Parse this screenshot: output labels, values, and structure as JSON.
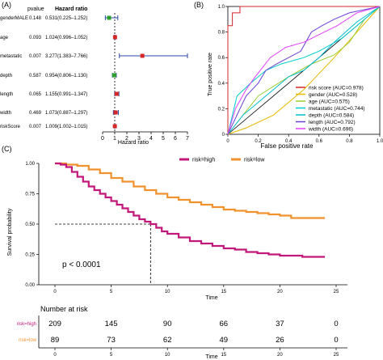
{
  "panels": {
    "a_label": "(A)",
    "b_label": "(B)",
    "c_label": "(C)"
  },
  "forest": {
    "col_pvalue": "pvalue",
    "col_hr": "Hazard ratio",
    "xlabel": "Hazard ratio",
    "ticks": [
      0,
      1,
      2,
      3,
      4,
      5,
      6,
      7
    ],
    "xlim": [
      0,
      7
    ],
    "ref_line": 1,
    "rows": [
      {
        "name": "genderMALE",
        "pvalue": "0.148",
        "hr_text": "0.531(0.225–1.252)",
        "hr": 0.531,
        "lo": 0.225,
        "hi": 1.252,
        "color": "#2ca02c"
      },
      {
        "name": "age",
        "pvalue": "0.093",
        "hr_text": "1.024(0.996–1.052)",
        "hr": 1.024,
        "lo": 0.996,
        "hi": 1.052,
        "color": "#d62728"
      },
      {
        "name": "metastatic",
        "pvalue": "0.007",
        "hr_text": "3.277(1.383–7.766)",
        "hr": 3.277,
        "lo": 1.383,
        "hi": 7.766,
        "color": "#d62728"
      },
      {
        "name": "depth",
        "pvalue": "0.587",
        "pvalue_raw": "0.587",
        "hr_text": "0.954(0.806–1.130)",
        "hr": 0.954,
        "lo": 0.806,
        "hi": 1.13,
        "color": "#2ca02c"
      },
      {
        "name": "length",
        "pvalue": "0.065",
        "hr_text": "1.155(0.991–1.347)",
        "hr": 1.155,
        "lo": 0.991,
        "hi": 1.347,
        "color": "#d62728"
      },
      {
        "name": "width",
        "pvalue": "0.469",
        "hr_text": "1.073(0.887–1.297)",
        "hr": 1.073,
        "lo": 0.887,
        "hi": 1.297,
        "color": "#d62728"
      },
      {
        "name": "riskScore",
        "pvalue": "0.007",
        "hr_text": "1.009(1.002–1.015)",
        "hr": 1.009,
        "lo": 1.002,
        "hi": 1.015,
        "color": "#d62728"
      }
    ]
  },
  "roc": {
    "xlabel": "False positive rate",
    "ylabel": "True positive rate",
    "ticks": [
      0,
      0.2,
      0.4,
      0.6,
      0.8,
      1
    ],
    "tick_labels": [
      "0",
      "0.2",
      "0.4",
      "0.6",
      "0.8",
      "1.0"
    ],
    "series": [
      {
        "name": "risk score (AUC=0.978)",
        "color": "#d62728",
        "points": [
          [
            0,
            0
          ],
          [
            0,
            0.85
          ],
          [
            0.03,
            0.85
          ],
          [
            0.03,
            0.95
          ],
          [
            0.08,
            0.95
          ],
          [
            0.08,
            1
          ],
          [
            1,
            1
          ]
        ]
      },
      {
        "name": "gender (AUC=0.528)",
        "color": "#e6b800",
        "points": [
          [
            0,
            0
          ],
          [
            0.12,
            0.05
          ],
          [
            0.3,
            0.15
          ],
          [
            0.5,
            0.35
          ],
          [
            0.7,
            0.6
          ],
          [
            0.85,
            0.8
          ],
          [
            1,
            1
          ]
        ]
      },
      {
        "name": "age (AUC=0.575)",
        "color": "#9acd32",
        "points": [
          [
            0,
            0
          ],
          [
            0.08,
            0.12
          ],
          [
            0.2,
            0.3
          ],
          [
            0.4,
            0.45
          ],
          [
            0.55,
            0.55
          ],
          [
            0.7,
            0.62
          ],
          [
            0.8,
            0.72
          ],
          [
            0.9,
            0.9
          ],
          [
            1,
            1
          ]
        ]
      },
      {
        "name": "metastatic (AUC=0.744)",
        "color": "#00cccc",
        "points": [
          [
            0,
            0
          ],
          [
            0.06,
            0.3
          ],
          [
            0.15,
            0.4
          ],
          [
            0.25,
            0.5
          ],
          [
            0.35,
            0.55
          ],
          [
            0.5,
            0.6
          ],
          [
            0.6,
            0.65
          ],
          [
            0.75,
            0.75
          ],
          [
            0.85,
            0.85
          ],
          [
            1,
            1
          ]
        ]
      },
      {
        "name": "depth (AUC=0.584)",
        "color": "#00bcd4",
        "points": [
          [
            0,
            0
          ],
          [
            0.1,
            0.15
          ],
          [
            0.2,
            0.25
          ],
          [
            0.3,
            0.35
          ],
          [
            0.4,
            0.45
          ],
          [
            0.5,
            0.5
          ],
          [
            0.6,
            0.6
          ],
          [
            0.7,
            0.72
          ],
          [
            0.85,
            0.88
          ],
          [
            1,
            1
          ]
        ]
      },
      {
        "name": "length (AUC=0.792)",
        "color": "#6a3fd6",
        "points": [
          [
            0,
            0
          ],
          [
            0.04,
            0.1
          ],
          [
            0.08,
            0.2
          ],
          [
            0.12,
            0.3
          ],
          [
            0.2,
            0.4
          ],
          [
            0.25,
            0.5
          ],
          [
            0.32,
            0.55
          ],
          [
            0.4,
            0.6
          ],
          [
            0.48,
            0.65
          ],
          [
            0.55,
            0.8
          ],
          [
            0.62,
            0.85
          ],
          [
            0.7,
            0.9
          ],
          [
            0.8,
            0.95
          ],
          [
            1,
            1
          ]
        ]
      },
      {
        "name": "width (AUC=0.696)",
        "color": "#e040fb",
        "points": [
          [
            0,
            0
          ],
          [
            0.05,
            0.2
          ],
          [
            0.12,
            0.35
          ],
          [
            0.18,
            0.45
          ],
          [
            0.28,
            0.6
          ],
          [
            0.38,
            0.68
          ],
          [
            0.5,
            0.72
          ],
          [
            0.6,
            0.78
          ],
          [
            0.72,
            0.85
          ],
          [
            0.85,
            0.95
          ],
          [
            1,
            1
          ]
        ]
      }
    ]
  },
  "km": {
    "legend": [
      {
        "name": "risk=high",
        "color": "#c2187a"
      },
      {
        "name": "risk=low",
        "color": "#f0922e"
      }
    ],
    "ylabel": "Survival probability",
    "xlabel": "Time",
    "yticks": [
      0,
      0.25,
      0.5,
      0.75,
      1
    ],
    "ytick_labels": [
      "0.00",
      "0.25",
      "0.50",
      "0.75",
      "1.00"
    ],
    "xticks": [
      0,
      5,
      10,
      15,
      20,
      25
    ],
    "xlim": [
      0,
      25
    ],
    "ylim": [
      0,
      1
    ],
    "pvalue_text": "p < 0.0001",
    "median_time": 8.5,
    "median_surv": 0.5,
    "high_curve": [
      [
        0,
        1
      ],
      [
        0.5,
        0.99
      ],
      [
        1,
        0.97
      ],
      [
        1.5,
        0.93
      ],
      [
        2,
        0.89
      ],
      [
        2.5,
        0.85
      ],
      [
        3,
        0.81
      ],
      [
        3.5,
        0.78
      ],
      [
        4,
        0.75
      ],
      [
        4.5,
        0.72
      ],
      [
        5,
        0.69
      ],
      [
        5.5,
        0.66
      ],
      [
        6,
        0.63
      ],
      [
        6.5,
        0.6
      ],
      [
        7,
        0.57
      ],
      [
        7.5,
        0.54
      ],
      [
        8,
        0.52
      ],
      [
        8.5,
        0.5
      ],
      [
        9,
        0.47
      ],
      [
        9.5,
        0.44
      ],
      [
        10,
        0.42
      ],
      [
        11,
        0.39
      ],
      [
        12,
        0.36
      ],
      [
        13,
        0.34
      ],
      [
        14,
        0.32
      ],
      [
        15,
        0.3
      ],
      [
        16,
        0.29
      ],
      [
        17,
        0.27
      ],
      [
        18,
        0.26
      ],
      [
        19,
        0.25
      ],
      [
        20,
        0.24
      ],
      [
        22,
        0.23
      ],
      [
        24,
        0.23
      ]
    ],
    "low_curve": [
      [
        0,
        1
      ],
      [
        1,
        0.99
      ],
      [
        2,
        0.98
      ],
      [
        3,
        0.95
      ],
      [
        4,
        0.92
      ],
      [
        5,
        0.88
      ],
      [
        6,
        0.85
      ],
      [
        7,
        0.81
      ],
      [
        8,
        0.78
      ],
      [
        9,
        0.75
      ],
      [
        10,
        0.72
      ],
      [
        11,
        0.7
      ],
      [
        12,
        0.68
      ],
      [
        13,
        0.66
      ],
      [
        14,
        0.64
      ],
      [
        15,
        0.62
      ],
      [
        16,
        0.61
      ],
      [
        17,
        0.6
      ],
      [
        18,
        0.59
      ],
      [
        19,
        0.58
      ],
      [
        20,
        0.57
      ],
      [
        21,
        0.55
      ],
      [
        22,
        0.55
      ],
      [
        24,
        0.55
      ]
    ],
    "risk_table": {
      "title": "Number at risk",
      "xlabel": "Time",
      "rows": [
        {
          "label": "risk=high",
          "color": "#c2187a",
          "values": [
            "209",
            "145",
            "90",
            "66",
            "37",
            "0"
          ]
        },
        {
          "label": "risk=low",
          "color": "#f0922e",
          "values": [
            "89",
            "73",
            "62",
            "49",
            "26",
            "0"
          ]
        }
      ]
    }
  }
}
